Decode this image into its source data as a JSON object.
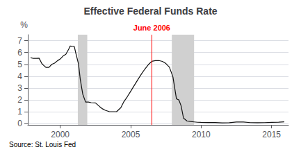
{
  "chart_data": {
    "type": "line",
    "title": "Effective Federal Funds Rate",
    "ylabel": "%",
    "source": "Source: St. Louis Fed",
    "x": [
      1997.9,
      1998.1,
      1998.3,
      1998.5,
      1998.7,
      1998.9,
      1999.0,
      1999.2,
      1999.4,
      1999.6,
      1999.8,
      2000.0,
      2000.2,
      2000.4,
      2000.6,
      2000.7,
      2000.9,
      2001.0,
      2001.1,
      2001.3,
      2001.42,
      2001.6,
      2001.8,
      2002.0,
      2002.2,
      2002.5,
      2002.8,
      2003.0,
      2003.2,
      2003.5,
      2003.8,
      2004.0,
      2004.3,
      2004.5,
      2004.75,
      2005.0,
      2005.25,
      2005.5,
      2005.75,
      2006.0,
      2006.25,
      2006.5,
      2006.75,
      2007.0,
      2007.25,
      2007.5,
      2007.75,
      2008.0,
      2008.25,
      2008.42,
      2008.58,
      2008.75,
      2009.0,
      2009.25,
      2009.5,
      2009.75,
      2010.0,
      2010.5,
      2011.0,
      2011.5,
      2012.0,
      2012.5,
      2013.0,
      2013.5,
      2014.0,
      2014.5,
      2015.0,
      2015.5,
      2015.9
    ],
    "values": [
      5.56,
      5.5,
      5.5,
      5.52,
      5.06,
      4.83,
      4.74,
      4.75,
      5.0,
      5.1,
      5.3,
      5.45,
      5.7,
      5.85,
      6.27,
      6.54,
      6.52,
      6.5,
      5.98,
      5.02,
      3.77,
      2.49,
      1.82,
      1.82,
      1.77,
      1.75,
      1.44,
      1.25,
      1.13,
      1.01,
      1.01,
      1.01,
      1.35,
      1.82,
      2.25,
      2.73,
      3.21,
      3.69,
      4.16,
      4.59,
      4.97,
      5.26,
      5.32,
      5.32,
      5.25,
      5.07,
      4.76,
      3.94,
      2.09,
      2.0,
      1.5,
      0.47,
      0.22,
      0.18,
      0.15,
      0.12,
      0.11,
      0.1,
      0.1,
      0.07,
      0.08,
      0.14,
      0.14,
      0.09,
      0.08,
      0.09,
      0.11,
      0.13,
      0.15
    ],
    "color": "#111111",
    "xlim": [
      1997.7,
      2016.2
    ],
    "ylim": [
      -0.1,
      7.5
    ],
    "xticks": [
      2000,
      2005,
      2010,
      2015
    ],
    "yticks": [
      0,
      1,
      2,
      3,
      4,
      5,
      6,
      7
    ],
    "grid": true,
    "annotations": [
      {
        "text": "June 2006",
        "x": 2006.5,
        "color": "red"
      }
    ],
    "shaded_ranges": [
      {
        "from": 2001.25,
        "to": 2001.92
      },
      {
        "from": 2007.92,
        "to": 2009.5
      }
    ],
    "shade_color": "#d0d0d0"
  }
}
